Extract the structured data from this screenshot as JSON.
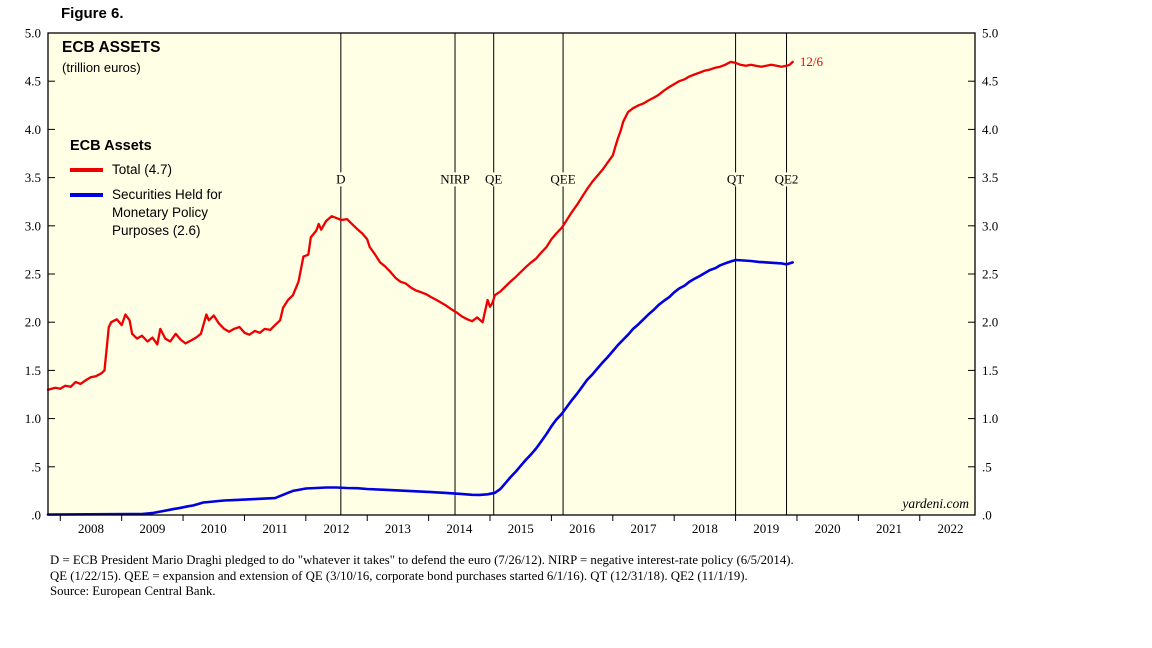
{
  "figure_label": "Figure 6.",
  "colors": {
    "plot_bg": "#ffffe6",
    "axis": "#000000"
  },
  "header": {
    "title": "ECB ASSETS",
    "subtitle": "(trillion euros)"
  },
  "legend": {
    "title": "ECB Assets",
    "items": [
      {
        "label_lines": [
          "Total (4.7)"
        ]
      },
      {
        "label_lines": [
          "Securities Held for",
          "Monetary Policy",
          "Purposes (2.6)"
        ]
      }
    ]
  },
  "footnotes": [
    "D = ECB President Mario Draghi pledged to do \"whatever it takes\" to defend the euro (7/26/12). NIRP = negative interest-rate policy (6/5/2014).",
    "QE (1/22/15). QEE = expansion and extension of QE (3/10/16, corporate bond purchases started 6/1/16). QT (12/31/18). QE2 (11/1/19).",
    "Source: European Central Bank."
  ],
  "chart_data": {
    "type": "line",
    "title": "ECB ASSETS (trillion euros)",
    "x_range": [
      2007.8,
      2022.9
    ],
    "y_range": [
      0,
      5.0
    ],
    "y_tick_step": 0.5,
    "y_tick_labels": [
      ".0",
      ".5",
      "1.0",
      "1.5",
      "2.0",
      "2.5",
      "3.0",
      "3.5",
      "4.0",
      "4.5",
      "5.0"
    ],
    "x_year_labels": [
      "2008",
      "2009",
      "2010",
      "2011",
      "2012",
      "2013",
      "2014",
      "2015",
      "2016",
      "2017",
      "2018",
      "2019",
      "2020",
      "2021",
      "2022"
    ],
    "grid": false,
    "legend_position": "upper-left-inside",
    "watermark": "yardeni.com",
    "end_annotation": {
      "label": "12/6",
      "x": 2019.95,
      "y": 4.7,
      "color": "#ee0000"
    },
    "event_lines": [
      {
        "label": "D",
        "x": 2012.57,
        "label_y": 3.44
      },
      {
        "label": "NIRP",
        "x": 2014.43,
        "label_y": 3.44
      },
      {
        "label": "QE",
        "x": 2015.06,
        "label_y": 3.44
      },
      {
        "label": "QEE",
        "x": 2016.19,
        "label_y": 3.44
      },
      {
        "label": "QT",
        "x": 2019.0,
        "label_y": 3.44
      },
      {
        "label": "QE2",
        "x": 2019.83,
        "label_y": 3.44
      }
    ],
    "series": [
      {
        "id": "total",
        "name": "Total (4.7)",
        "color": "#ee0000",
        "width": 2.3,
        "points": [
          [
            2007.8,
            1.3
          ],
          [
            2007.92,
            1.32
          ],
          [
            2008.0,
            1.31
          ],
          [
            2008.08,
            1.34
          ],
          [
            2008.17,
            1.33
          ],
          [
            2008.25,
            1.38
          ],
          [
            2008.33,
            1.36
          ],
          [
            2008.42,
            1.4
          ],
          [
            2008.5,
            1.43
          ],
          [
            2008.58,
            1.44
          ],
          [
            2008.67,
            1.47
          ],
          [
            2008.72,
            1.5
          ],
          [
            2008.79,
            1.95
          ],
          [
            2008.83,
            2.0
          ],
          [
            2008.92,
            2.03
          ],
          [
            2009.0,
            1.97
          ],
          [
            2009.06,
            2.08
          ],
          [
            2009.13,
            2.02
          ],
          [
            2009.17,
            1.88
          ],
          [
            2009.25,
            1.83
          ],
          [
            2009.33,
            1.86
          ],
          [
            2009.42,
            1.8
          ],
          [
            2009.5,
            1.84
          ],
          [
            2009.58,
            1.77
          ],
          [
            2009.63,
            1.93
          ],
          [
            2009.71,
            1.83
          ],
          [
            2009.79,
            1.8
          ],
          [
            2009.88,
            1.88
          ],
          [
            2009.96,
            1.82
          ],
          [
            2010.04,
            1.78
          ],
          [
            2010.13,
            1.81
          ],
          [
            2010.21,
            1.84
          ],
          [
            2010.29,
            1.88
          ],
          [
            2010.38,
            2.08
          ],
          [
            2010.42,
            2.02
          ],
          [
            2010.5,
            2.07
          ],
          [
            2010.58,
            1.99
          ],
          [
            2010.67,
            1.93
          ],
          [
            2010.75,
            1.9
          ],
          [
            2010.83,
            1.93
          ],
          [
            2010.92,
            1.95
          ],
          [
            2011.0,
            1.89
          ],
          [
            2011.08,
            1.87
          ],
          [
            2011.17,
            1.91
          ],
          [
            2011.25,
            1.89
          ],
          [
            2011.33,
            1.93
          ],
          [
            2011.42,
            1.92
          ],
          [
            2011.5,
            1.97
          ],
          [
            2011.58,
            2.02
          ],
          [
            2011.63,
            2.15
          ],
          [
            2011.71,
            2.23
          ],
          [
            2011.79,
            2.28
          ],
          [
            2011.88,
            2.42
          ],
          [
            2011.96,
            2.68
          ],
          [
            2012.04,
            2.7
          ],
          [
            2012.08,
            2.88
          ],
          [
            2012.17,
            2.95
          ],
          [
            2012.21,
            3.02
          ],
          [
            2012.25,
            2.96
          ],
          [
            2012.33,
            3.05
          ],
          [
            2012.42,
            3.1
          ],
          [
            2012.5,
            3.08
          ],
          [
            2012.58,
            3.06
          ],
          [
            2012.67,
            3.07
          ],
          [
            2012.75,
            3.02
          ],
          [
            2012.83,
            2.97
          ],
          [
            2012.92,
            2.92
          ],
          [
            2013.0,
            2.86
          ],
          [
            2013.04,
            2.78
          ],
          [
            2013.13,
            2.7
          ],
          [
            2013.21,
            2.62
          ],
          [
            2013.29,
            2.58
          ],
          [
            2013.38,
            2.52
          ],
          [
            2013.46,
            2.46
          ],
          [
            2013.54,
            2.42
          ],
          [
            2013.63,
            2.4
          ],
          [
            2013.71,
            2.36
          ],
          [
            2013.79,
            2.33
          ],
          [
            2013.88,
            2.31
          ],
          [
            2013.96,
            2.29
          ],
          [
            2014.04,
            2.26
          ],
          [
            2014.13,
            2.23
          ],
          [
            2014.21,
            2.2
          ],
          [
            2014.29,
            2.17
          ],
          [
            2014.38,
            2.13
          ],
          [
            2014.46,
            2.1
          ],
          [
            2014.54,
            2.06
          ],
          [
            2014.63,
            2.03
          ],
          [
            2014.71,
            2.01
          ],
          [
            2014.79,
            2.05
          ],
          [
            2014.88,
            2.0
          ],
          [
            2014.96,
            2.23
          ],
          [
            2015.0,
            2.16
          ],
          [
            2015.04,
            2.2
          ],
          [
            2015.08,
            2.28
          ],
          [
            2015.17,
            2.32
          ],
          [
            2015.25,
            2.37
          ],
          [
            2015.33,
            2.42
          ],
          [
            2015.42,
            2.47
          ],
          [
            2015.5,
            2.52
          ],
          [
            2015.58,
            2.57
          ],
          [
            2015.67,
            2.62
          ],
          [
            2015.75,
            2.66
          ],
          [
            2015.83,
            2.72
          ],
          [
            2015.92,
            2.78
          ],
          [
            2016.0,
            2.86
          ],
          [
            2016.08,
            2.92
          ],
          [
            2016.17,
            2.98
          ],
          [
            2016.25,
            3.06
          ],
          [
            2016.33,
            3.14
          ],
          [
            2016.42,
            3.22
          ],
          [
            2016.5,
            3.3
          ],
          [
            2016.58,
            3.38
          ],
          [
            2016.67,
            3.46
          ],
          [
            2016.75,
            3.52
          ],
          [
            2016.83,
            3.58
          ],
          [
            2016.92,
            3.66
          ],
          [
            2017.0,
            3.73
          ],
          [
            2017.04,
            3.82
          ],
          [
            2017.08,
            3.9
          ],
          [
            2017.13,
            3.99
          ],
          [
            2017.17,
            4.08
          ],
          [
            2017.25,
            4.18
          ],
          [
            2017.33,
            4.22
          ],
          [
            2017.42,
            4.25
          ],
          [
            2017.5,
            4.27
          ],
          [
            2017.58,
            4.3
          ],
          [
            2017.67,
            4.33
          ],
          [
            2017.75,
            4.36
          ],
          [
            2017.83,
            4.4
          ],
          [
            2017.92,
            4.44
          ],
          [
            2018.0,
            4.47
          ],
          [
            2018.08,
            4.5
          ],
          [
            2018.17,
            4.52
          ],
          [
            2018.25,
            4.55
          ],
          [
            2018.33,
            4.57
          ],
          [
            2018.42,
            4.59
          ],
          [
            2018.5,
            4.61
          ],
          [
            2018.58,
            4.62
          ],
          [
            2018.67,
            4.64
          ],
          [
            2018.75,
            4.65
          ],
          [
            2018.83,
            4.67
          ],
          [
            2018.92,
            4.7
          ],
          [
            2019.0,
            4.69
          ],
          [
            2019.08,
            4.67
          ],
          [
            2019.17,
            4.66
          ],
          [
            2019.25,
            4.67
          ],
          [
            2019.33,
            4.66
          ],
          [
            2019.42,
            4.65
          ],
          [
            2019.5,
            4.66
          ],
          [
            2019.58,
            4.67
          ],
          [
            2019.67,
            4.66
          ],
          [
            2019.75,
            4.65
          ],
          [
            2019.83,
            4.66
          ],
          [
            2019.88,
            4.67
          ],
          [
            2019.93,
            4.7
          ]
        ]
      },
      {
        "id": "securities",
        "name": "Securities Held for Monetary Policy Purposes (2.6)",
        "color": "#0000e0",
        "width": 2.6,
        "points": [
          [
            2007.8,
            0.005
          ],
          [
            2009.33,
            0.01
          ],
          [
            2009.5,
            0.02
          ],
          [
            2009.58,
            0.03
          ],
          [
            2009.67,
            0.04
          ],
          [
            2009.75,
            0.05
          ],
          [
            2009.83,
            0.06
          ],
          [
            2009.92,
            0.07
          ],
          [
            2010.0,
            0.08
          ],
          [
            2010.08,
            0.09
          ],
          [
            2010.17,
            0.1
          ],
          [
            2010.33,
            0.13
          ],
          [
            2010.42,
            0.135
          ],
          [
            2010.5,
            0.14
          ],
          [
            2010.58,
            0.145
          ],
          [
            2010.67,
            0.15
          ],
          [
            2010.83,
            0.155
          ],
          [
            2011.0,
            0.16
          ],
          [
            2011.17,
            0.165
          ],
          [
            2011.33,
            0.17
          ],
          [
            2011.5,
            0.175
          ],
          [
            2011.63,
            0.21
          ],
          [
            2011.71,
            0.23
          ],
          [
            2011.79,
            0.25
          ],
          [
            2011.88,
            0.26
          ],
          [
            2012.0,
            0.275
          ],
          [
            2012.17,
            0.28
          ],
          [
            2012.33,
            0.285
          ],
          [
            2012.5,
            0.285
          ],
          [
            2012.67,
            0.28
          ],
          [
            2012.83,
            0.278
          ],
          [
            2013.0,
            0.27
          ],
          [
            2013.25,
            0.262
          ],
          [
            2013.5,
            0.255
          ],
          [
            2013.75,
            0.247
          ],
          [
            2014.0,
            0.24
          ],
          [
            2014.25,
            0.23
          ],
          [
            2014.5,
            0.22
          ],
          [
            2014.71,
            0.21
          ],
          [
            2014.83,
            0.208
          ],
          [
            2014.96,
            0.215
          ],
          [
            2015.08,
            0.23
          ],
          [
            2015.17,
            0.27
          ],
          [
            2015.25,
            0.33
          ],
          [
            2015.33,
            0.39
          ],
          [
            2015.42,
            0.45
          ],
          [
            2015.5,
            0.51
          ],
          [
            2015.58,
            0.57
          ],
          [
            2015.67,
            0.63
          ],
          [
            2015.75,
            0.69
          ],
          [
            2015.83,
            0.76
          ],
          [
            2015.92,
            0.84
          ],
          [
            2016.0,
            0.92
          ],
          [
            2016.08,
            0.99
          ],
          [
            2016.17,
            1.05
          ],
          [
            2016.25,
            1.12
          ],
          [
            2016.33,
            1.19
          ],
          [
            2016.42,
            1.26
          ],
          [
            2016.5,
            1.33
          ],
          [
            2016.58,
            1.4
          ],
          [
            2016.67,
            1.46
          ],
          [
            2016.75,
            1.52
          ],
          [
            2016.83,
            1.58
          ],
          [
            2016.92,
            1.64
          ],
          [
            2017.0,
            1.7
          ],
          [
            2017.08,
            1.76
          ],
          [
            2017.17,
            1.82
          ],
          [
            2017.25,
            1.87
          ],
          [
            2017.33,
            1.93
          ],
          [
            2017.42,
            1.98
          ],
          [
            2017.5,
            2.03
          ],
          [
            2017.58,
            2.08
          ],
          [
            2017.67,
            2.13
          ],
          [
            2017.75,
            2.18
          ],
          [
            2017.83,
            2.22
          ],
          [
            2017.92,
            2.26
          ],
          [
            2018.0,
            2.31
          ],
          [
            2018.08,
            2.35
          ],
          [
            2018.17,
            2.38
          ],
          [
            2018.25,
            2.42
          ],
          [
            2018.33,
            2.45
          ],
          [
            2018.42,
            2.48
          ],
          [
            2018.5,
            2.51
          ],
          [
            2018.58,
            2.54
          ],
          [
            2018.67,
            2.56
          ],
          [
            2018.75,
            2.59
          ],
          [
            2018.83,
            2.61
          ],
          [
            2018.92,
            2.63
          ],
          [
            2019.0,
            2.645
          ],
          [
            2019.13,
            2.64
          ],
          [
            2019.25,
            2.635
          ],
          [
            2019.38,
            2.625
          ],
          [
            2019.5,
            2.62
          ],
          [
            2019.63,
            2.615
          ],
          [
            2019.75,
            2.61
          ],
          [
            2019.83,
            2.6
          ],
          [
            2019.93,
            2.62
          ]
        ]
      }
    ]
  }
}
